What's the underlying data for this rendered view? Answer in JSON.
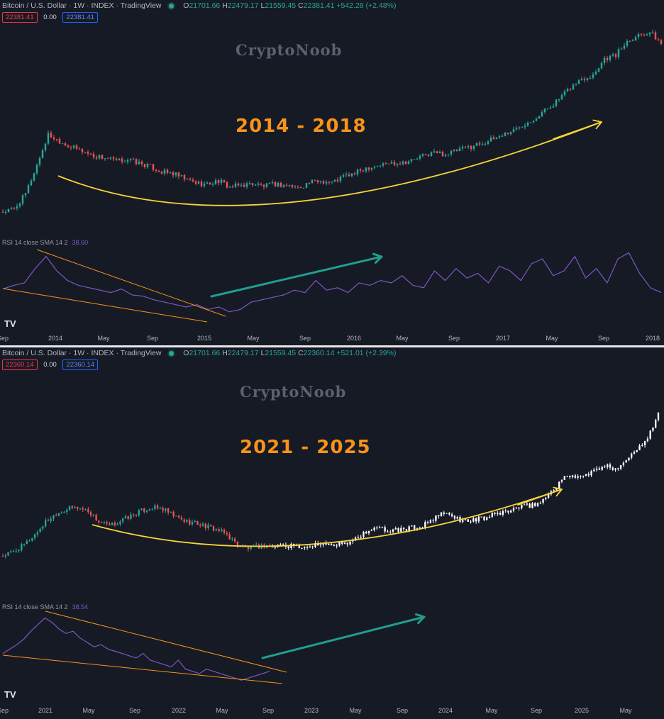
{
  "top": {
    "header": {
      "symbol": "Bitcoin / U.S. Dollar · 1W · INDEX · TradingView",
      "o_label": "O",
      "o": "21701.66",
      "h_label": "H",
      "h": "22479.17",
      "l_label": "L",
      "l": "21559.45",
      "c_label": "C",
      "c": "22381.41",
      "change": "+542.28 (+2.48%)"
    },
    "badges": {
      "price": "22381.41",
      "zero": "0.00",
      "price2": "22381.41"
    },
    "watermark": "CryptoNoob",
    "title": "2014 - 2018",
    "rsi_label": "RSI 14 close SMA 14 2",
    "rsi_value": "38.60",
    "xaxis": [
      "Sep",
      "2014",
      "May",
      "Sep",
      "2015",
      "May",
      "Sep",
      "2016",
      "May",
      "Sep",
      "2017",
      "May",
      "Sep",
      "2018"
    ]
  },
  "bottom": {
    "header": {
      "symbol": "Bitcoin / U.S. Dollar · 1W · INDEX · TradingView",
      "o_label": "O",
      "o": "21701.66",
      "h_label": "H",
      "h": "22479.17",
      "l_label": "L",
      "l": "21559.45",
      "c_label": "C",
      "c": "22360.14",
      "change": "+521.01 (+2.39%)"
    },
    "badges": {
      "price": "22360.14",
      "zero": "0.00",
      "price2": "22360.14"
    },
    "watermark": "CryptoNoob",
    "title": "2021 - 2025",
    "rsi_label": "RSI 14 close SMA 14 2",
    "rsi_value": "38.54",
    "xaxis": [
      "Sep",
      "2021",
      "May",
      "Sep",
      "2022",
      "May",
      "Sep",
      "2023",
      "May",
      "Sep",
      "2024",
      "May",
      "Sep",
      "2025",
      "May"
    ]
  },
  "logo": "TV",
  "colors": {
    "up": "#26a69a",
    "down": "#ef5350",
    "projection": "#ffffff",
    "rsi": "#7e57c2",
    "trendline": "#f7931a",
    "arc": "#f5d33b",
    "arrow": "#1f9e8f",
    "title": "#f7931a"
  },
  "chart_data": [
    {
      "type": "line",
      "panel": "top-price",
      "series": [
        {
          "values": [
            0.05,
            0.08,
            0.25,
            0.58,
            0.92,
            0.85,
            0.78,
            0.74,
            0.68,
            0.66,
            0.62,
            0.64,
            0.6,
            0.56,
            0.5,
            0.48,
            0.42,
            0.38,
            0.36,
            0.4,
            0.33,
            0.35,
            0.37,
            0.34,
            0.36,
            0.35,
            0.32,
            0.38,
            0.4,
            0.38,
            0.45,
            0.48,
            0.55,
            0.57,
            0.6,
            0.61,
            0.63,
            0.68,
            0.72,
            0.7,
            0.74,
            0.78,
            0.82,
            0.86,
            0.92,
            0.97,
            1.05,
            1.12,
            1.22,
            1.32,
            1.45,
            1.55,
            1.6,
            1.78,
            1.82,
            1.98,
            2.05,
            2.08,
            1.95
          ]
        }
      ]
    },
    {
      "type": "line",
      "panel": "top-rsi",
      "series": [
        {
          "name": "RSI 14 close SMA 14 2",
          "values": [
            55,
            58,
            60,
            72,
            82,
            70,
            62,
            58,
            56,
            54,
            52,
            55,
            50,
            49,
            46,
            44,
            42,
            40,
            42,
            38,
            40,
            36,
            38,
            44,
            46,
            48,
            50,
            54,
            52,
            62,
            54,
            56,
            52,
            60,
            58,
            62,
            60,
            66,
            58,
            56,
            70,
            62,
            72,
            64,
            68,
            60,
            74,
            70,
            62,
            76,
            80,
            66,
            70,
            82,
            64,
            72,
            60,
            80,
            85,
            68,
            56,
            52
          ]
        }
      ]
    },
    {
      "type": "line",
      "panel": "bottom-price",
      "series": [
        {
          "name": "actual",
          "values": [
            0.05,
            0.1,
            0.18,
            0.3,
            0.45,
            0.55,
            0.6,
            0.62,
            0.58,
            0.45,
            0.4,
            0.46,
            0.52,
            0.58,
            0.62,
            0.6,
            0.52,
            0.46,
            0.44,
            0.4,
            0.36,
            0.3,
            0.18,
            0.14,
            0.16,
            0.18
          ]
        },
        {
          "name": "projection",
          "values": [
            0.16,
            0.17,
            0.16,
            0.15,
            0.18,
            0.21,
            0.18,
            0.2,
            0.28,
            0.35,
            0.37,
            0.34,
            0.36,
            0.38,
            0.4,
            0.48,
            0.55,
            0.5,
            0.46,
            0.48,
            0.5,
            0.55,
            0.58,
            0.62,
            0.64,
            0.68,
            0.8,
            0.95,
            1.0,
            0.98,
            1.05,
            1.1,
            1.08,
            1.18,
            1.3,
            1.45,
            1.72
          ]
        }
      ]
    },
    {
      "type": "line",
      "panel": "bottom-rsi",
      "series": [
        {
          "name": "RSI 14 close SMA 14 2",
          "values": [
            52,
            56,
            60,
            65,
            72,
            78,
            84,
            80,
            74,
            70,
            72,
            66,
            62,
            58,
            60,
            56,
            54,
            52,
            50,
            48,
            52,
            46,
            44,
            42,
            40,
            46,
            38,
            36,
            34,
            38,
            36,
            34,
            32,
            30,
            28,
            30,
            32,
            34,
            36
          ]
        }
      ]
    }
  ]
}
